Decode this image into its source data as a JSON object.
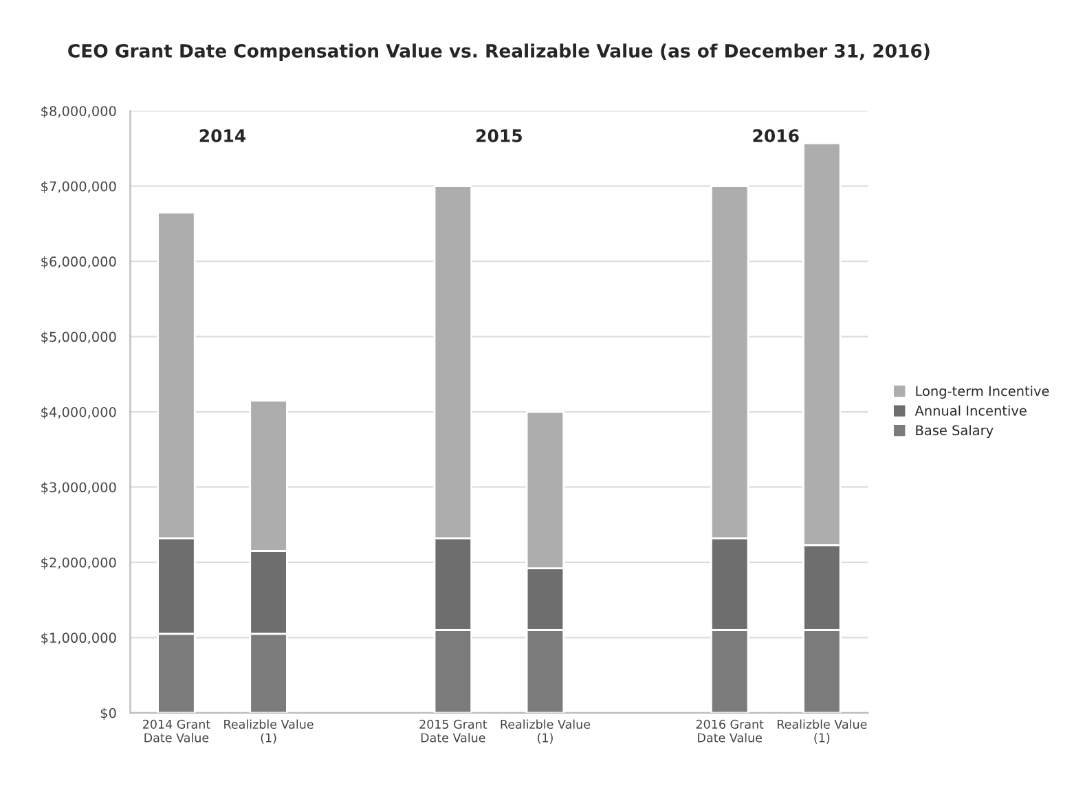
{
  "chart_data": {
    "type": "bar",
    "title": "CEO Grant Date Compensation Value vs. Realizable Value (as of December 31, 2016)",
    "categories": [
      "2014 Grant\nDate Value",
      "Realizble Value\n(1)",
      null,
      "2015 Grant\nDate Value",
      "Realizble Value\n(1)",
      null,
      "2016 Grant\nDate Value",
      "Realizble Value\n(1)"
    ],
    "stacked": true,
    "series": [
      {
        "name": "Base Salary",
        "color": "#7b7b7b",
        "values": [
          1050000,
          1050000,
          null,
          1100000,
          1100000,
          null,
          1100000,
          1100000
        ]
      },
      {
        "name": "Annual Incentive",
        "color": "#6e6e6e",
        "values": [
          1270000,
          1100000,
          null,
          1220000,
          820000,
          null,
          1220000,
          1130000
        ]
      },
      {
        "name": "Long-term Incentive",
        "color": "#adadad",
        "values": [
          4330000,
          2000000,
          null,
          4680000,
          2080000,
          null,
          4680000,
          5340000
        ]
      }
    ],
    "annotations": [
      "2014",
      "2015",
      "2016"
    ],
    "ylim": [
      0,
      8000000
    ],
    "yticks": [
      {
        "value": 0,
        "label": "$0"
      },
      {
        "value": 1000000,
        "label": "$1,000,000"
      },
      {
        "value": 2000000,
        "label": "$2,000,000"
      },
      {
        "value": 3000000,
        "label": "$3,000,000"
      },
      {
        "value": 4000000,
        "label": "$4,000,000"
      },
      {
        "value": 5000000,
        "label": "$5,000,000"
      },
      {
        "value": 6000000,
        "label": "$6,000,000"
      },
      {
        "value": 7000000,
        "label": "$7,000,000"
      },
      {
        "value": 8000000,
        "label": "$8,000,000"
      }
    ],
    "grid": "y",
    "legend": "right"
  }
}
